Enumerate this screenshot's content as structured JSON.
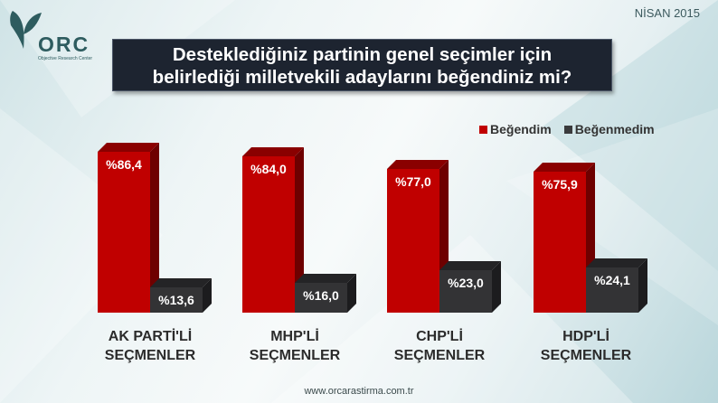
{
  "header": {
    "logo_text": "ORC",
    "logo_subtitle": "Objective Research Center",
    "date": "NİSAN 2015"
  },
  "title": {
    "line1": "Desteklediğiniz partinin genel seçimler için",
    "line2": "belirlediği milletvekili adaylarını beğendiniz mi?"
  },
  "legend": {
    "items": [
      {
        "label": "Beğendim",
        "color": "#c00000"
      },
      {
        "label": "Beğenmedim",
        "color": "#333335"
      }
    ]
  },
  "colors": {
    "begendim": "#c00000",
    "begenmedim": "#333335",
    "title_bg": "#1d2430"
  },
  "footer": {
    "url": "www.orcarastirma.com.tr"
  },
  "chart_data": {
    "type": "bar",
    "title": "Desteklediğiniz partinin genel seçimler için belirlediği milletvekili adaylarını beğendiniz mi?",
    "categories": [
      "AK PARTİ'Lİ SEÇMENLER",
      "MHP'Lİ SEÇMENLER",
      "CHP'Lİ SEÇMENLER",
      "HDP'Lİ SEÇMENLER"
    ],
    "category_lines": [
      [
        "AK PARTİ'Lİ",
        "SEÇMENLER"
      ],
      [
        "MHP'Lİ",
        "SEÇMENLER"
      ],
      [
        "CHP'Lİ",
        "SEÇMENLER"
      ],
      [
        "HDP'Lİ",
        "SEÇMENLER"
      ]
    ],
    "series": [
      {
        "name": "Beğendim",
        "values": [
          86.4,
          84.0,
          77.0,
          75.9
        ],
        "labels": [
          "%86,4",
          "%84,0",
          "%77,0",
          "%75,9"
        ]
      },
      {
        "name": "Beğenmedim",
        "values": [
          13.6,
          16.0,
          23.0,
          24.1
        ],
        "labels": [
          "%13,6",
          "%16,0",
          "%23,0",
          "%24,1"
        ]
      }
    ],
    "xlabel": "",
    "ylabel": "",
    "ylim": [
      0,
      100
    ],
    "grid": false,
    "legend_position": "top-right",
    "style": "3d-clustered"
  }
}
